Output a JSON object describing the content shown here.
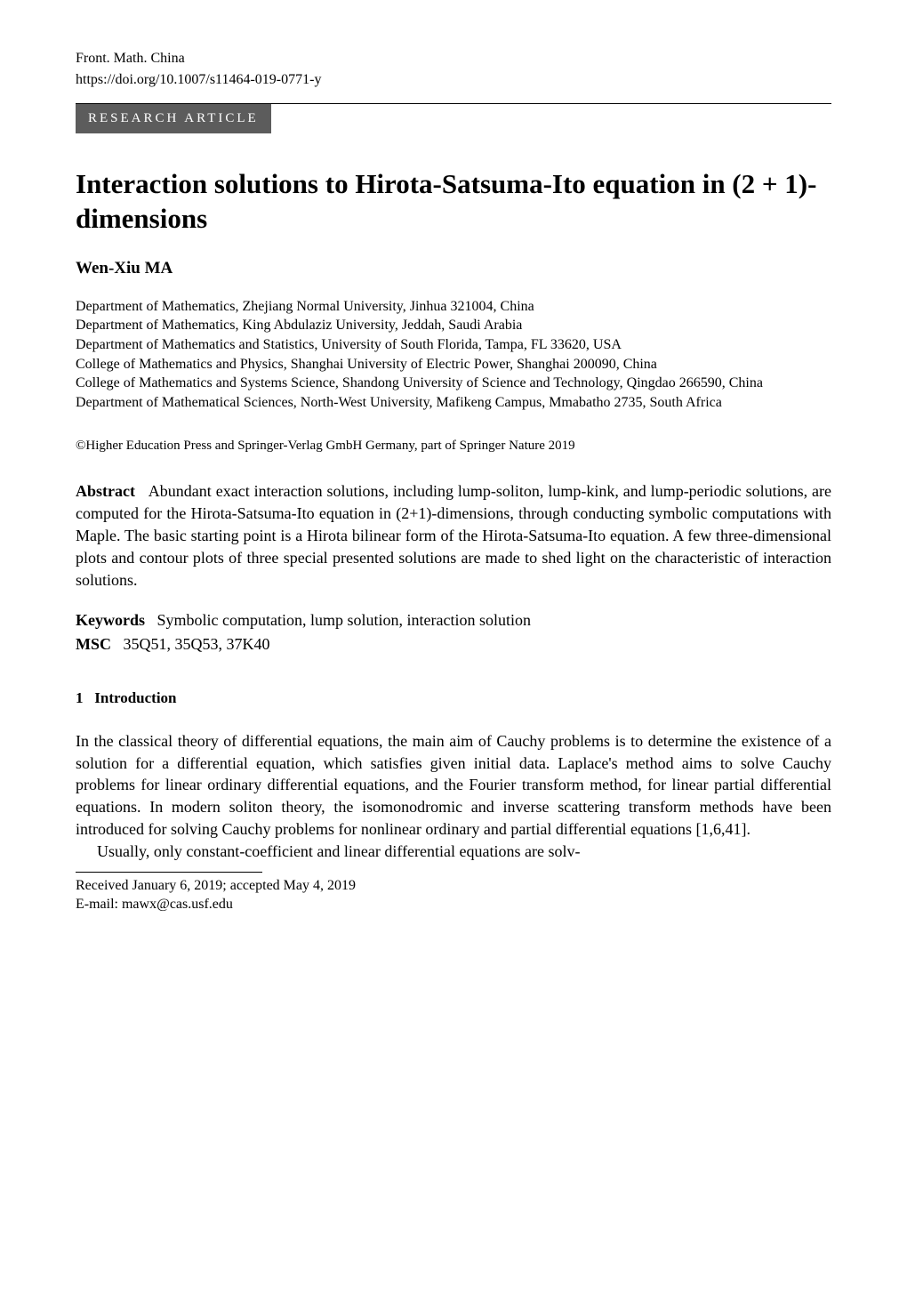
{
  "journal": "Front. Math. China",
  "doi": "https://doi.org/10.1007/s11464-019-0771-y",
  "badge": "RESEARCH   ARTICLE",
  "title": "Interaction solutions to Hirota-Satsuma-Ito equation in (2 + 1)-dimensions",
  "author": "Wen-Xiu MA",
  "affiliations": [
    "Department of Mathematics, Zhejiang Normal University, Jinhua 321004, China",
    "Department of Mathematics, King Abdulaziz University, Jeddah, Saudi Arabia",
    "Department of Mathematics and Statistics, University of South Florida, Tampa, FL 33620, USA",
    "College of Mathematics and Physics, Shanghai University of Electric Power, Shanghai 200090, China",
    "College of Mathematics and Systems Science, Shandong University of Science and Technology, Qingdao 266590, China",
    "Department of Mathematical Sciences, North-West University, Mafikeng Campus, Mmabatho 2735, South Africa"
  ],
  "copyright": "©Higher Education Press and Springer-Verlag GmbH Germany, part of Springer Nature 2019",
  "abstract_label": "Abstract",
  "abstract_text": "Abundant exact interaction solutions, including lump-soliton, lump-kink, and lump-periodic solutions, are computed for the Hirota-Satsuma-Ito equation in (2+1)-dimensions, through conducting symbolic computations with Maple. The basic starting point is a Hirota bilinear form of the Hirota-Satsuma-Ito equation. A few three-dimensional plots and contour plots of three special presented solutions are made to shed light on the characteristic of interaction solutions.",
  "keywords_label": "Keywords",
  "keywords_text": "Symbolic computation, lump solution, interaction solution",
  "msc_label": "MSC",
  "msc_text": "35Q51, 35Q53, 37K40",
  "section_number": "1",
  "section_title": "Introduction",
  "body_para1": "In the classical theory of differential equations, the main aim of Cauchy problems is to determine the existence of a solution for a differential equation, which satisfies given initial data. Laplace's method aims to solve Cauchy problems for linear ordinary differential equations, and the Fourier transform method, for linear partial differential equations. In modern soliton theory, the isomonodromic and inverse scattering transform methods have been introduced for solving Cauchy problems for nonlinear ordinary and partial differential equations [1,6,41].",
  "body_para2": "Usually, only constant-coefficient and linear differential equations are solv-",
  "footnote_received": "Received January 6, 2019; accepted May 4, 2019",
  "footnote_email": "E-mail: mawx@cas.usf.edu"
}
